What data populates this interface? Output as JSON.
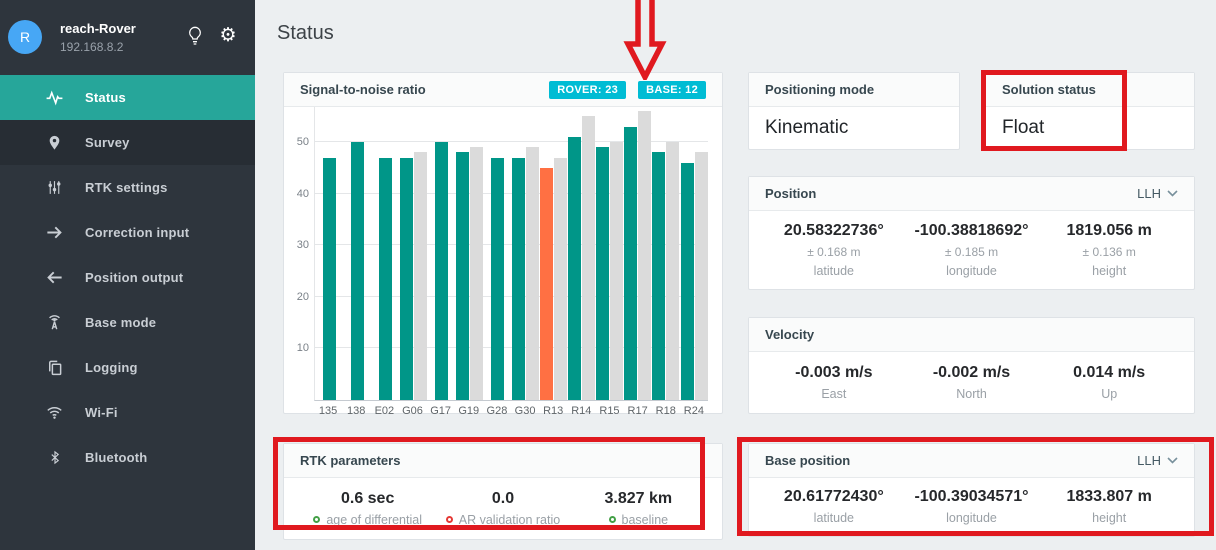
{
  "sidebar": {
    "device": {
      "avatar_letter": "R",
      "name": "reach-Rover",
      "ip": "192.168.8.2"
    },
    "items": [
      {
        "label": "Status",
        "icon": "pulse-icon",
        "active": true
      },
      {
        "label": "Survey",
        "icon": "map-pin-icon",
        "active": false
      },
      {
        "label": "RTK settings",
        "icon": "sliders-icon",
        "active": false
      },
      {
        "label": "Correction input",
        "icon": "arrow-right-icon",
        "active": false
      },
      {
        "label": "Position output",
        "icon": "arrow-left-icon",
        "active": false
      },
      {
        "label": "Base mode",
        "icon": "antenna-icon",
        "active": false
      },
      {
        "label": "Logging",
        "icon": "copy-icon",
        "active": false
      },
      {
        "label": "Wi-Fi",
        "icon": "wifi-icon",
        "active": false
      },
      {
        "label": "Bluetooth",
        "icon": "bluetooth-icon",
        "active": false
      }
    ],
    "colors": {
      "background": "#2E353D",
      "active": "#26A69A",
      "avatar": "#47A7F5"
    }
  },
  "page": {
    "title": "Status"
  },
  "snr": {
    "rover_badge": "ROVER: 23",
    "base_badge": "BASE: 12",
    "badge_color": "#00BCD4"
  },
  "chart_data": {
    "type": "bar",
    "title": "Signal-to-noise ratio",
    "categories": [
      "135",
      "138",
      "E02",
      "G06",
      "G17",
      "G19",
      "G28",
      "G30",
      "R13",
      "R14",
      "R15",
      "R17",
      "R18",
      "R24"
    ],
    "series": [
      {
        "name": "rover",
        "values": [
          47,
          50,
          47,
          47,
          50,
          48,
          47,
          47,
          45,
          51,
          49,
          53,
          48,
          46
        ]
      },
      {
        "name": "base",
        "values": [
          null,
          null,
          null,
          48,
          null,
          49,
          null,
          49,
          47,
          55,
          50,
          56,
          50,
          48
        ]
      }
    ],
    "highlight": {
      "category": "R13",
      "series": "rover",
      "color": "#FF7043"
    },
    "yticks": [
      10,
      20,
      30,
      40,
      50
    ],
    "ylim": [
      0,
      57
    ],
    "grid": true,
    "colors": {
      "rover": "#009688",
      "base": "#DBDBDB"
    }
  },
  "panels": {
    "positioning_mode": {
      "title": "Positioning mode",
      "value": "Kinematic"
    },
    "solution_status": {
      "title": "Solution status",
      "value": "Float"
    },
    "position": {
      "title": "Position",
      "unit": "LLH",
      "columns": [
        {
          "value": "20.58322736°",
          "accuracy": "± 0.168 m",
          "label": "latitude"
        },
        {
          "value": "-100.38818692°",
          "accuracy": "± 0.185 m",
          "label": "longitude"
        },
        {
          "value": "1819.056 m",
          "accuracy": "± 0.136 m",
          "label": "height"
        }
      ]
    },
    "velocity": {
      "title": "Velocity",
      "columns": [
        {
          "value": "-0.003 m/s",
          "label": "East"
        },
        {
          "value": "-0.002 m/s",
          "label": "North"
        },
        {
          "value": "0.014 m/s",
          "label": "Up"
        }
      ]
    },
    "rtk_parameters": {
      "title": "RTK parameters",
      "columns": [
        {
          "value": "0.6 sec",
          "label": "age of differential",
          "status": "green"
        },
        {
          "value": "0.0",
          "label": "AR validation ratio",
          "status": "red"
        },
        {
          "value": "3.827 km",
          "label": "baseline",
          "status": "green"
        }
      ]
    },
    "base_position": {
      "title": "Base position",
      "unit": "LLH",
      "columns": [
        {
          "value": "20.61772430°",
          "label": "latitude"
        },
        {
          "value": "-100.39034571°",
          "label": "longitude"
        },
        {
          "value": "1833.807 m",
          "label": "height"
        }
      ]
    }
  },
  "annotations": {
    "color": "#E0191F"
  }
}
